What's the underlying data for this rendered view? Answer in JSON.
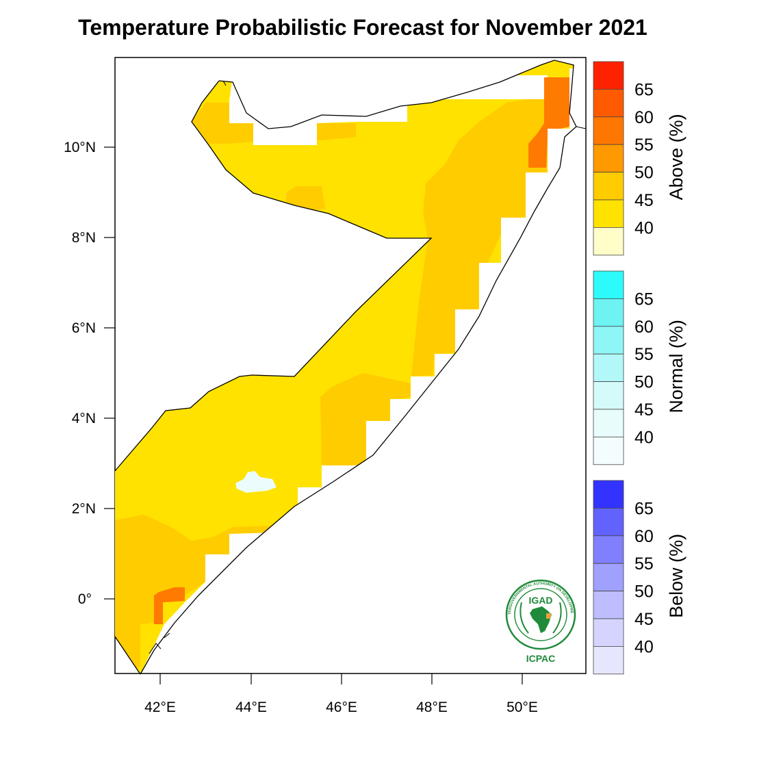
{
  "title": "Temperature Probabilistic Forecast for November 2021",
  "map": {
    "region": "Somalia",
    "lat_ticks": [
      "10°N",
      "8°N",
      "6°N",
      "4°N",
      "2°N",
      "0°"
    ],
    "lon_ticks": [
      "42°E",
      "44°E",
      "46°E",
      "48°E",
      "50°E"
    ],
    "lon_range": [
      41,
      51.4
    ],
    "lat_range": [
      -1.65,
      11.85
    ],
    "dominant_category": "Above",
    "colors": {
      "above_40": "#ffe200",
      "above_45": "#ffcc00",
      "above_50": "#ff9900",
      "above_55": "#ff7700",
      "normal_40": "#ecfcfc"
    }
  },
  "colorbars": [
    {
      "name": "Above (%)",
      "levels": [
        "65",
        "60",
        "55",
        "50",
        "45",
        "40"
      ],
      "colors": [
        "#ff2200",
        "#ff5a00",
        "#ff7700",
        "#ff9900",
        "#ffcc00",
        "#ffe200",
        "#fffdc8"
      ]
    },
    {
      "name": "Normal (%)",
      "levels": [
        "65",
        "60",
        "55",
        "50",
        "45",
        "40"
      ],
      "colors": [
        "#2dfbfb",
        "#6ef2f2",
        "#8ef6f6",
        "#b2f8f8",
        "#d4fafa",
        "#e8fcfc",
        "#f4fdfd"
      ]
    },
    {
      "name": "Below (%)",
      "levels": [
        "65",
        "60",
        "55",
        "50",
        "45",
        "40"
      ],
      "colors": [
        "#3333ff",
        "#6262ff",
        "#8080ff",
        "#a0a0ff",
        "#bdbdff",
        "#d4d4ff",
        "#e6e6ff"
      ]
    }
  ],
  "logo": {
    "name": "IGAD",
    "org": "ICPAC",
    "ring_text": "INTERGOVERNMENTAL AUTHORITY ON DEVELOPMENT"
  }
}
